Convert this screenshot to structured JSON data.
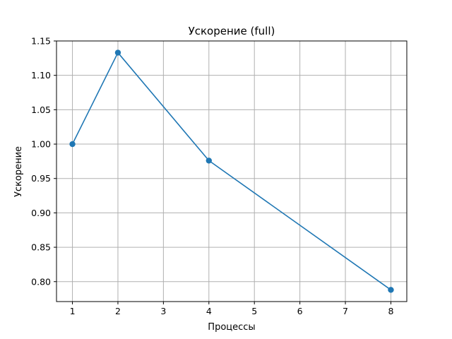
{
  "chart_data": {
    "type": "line",
    "title": "Ускорение (full)",
    "xlabel": "Процессы",
    "ylabel": "Ускорение",
    "x_ticks": [
      "1",
      "2",
      "3",
      "4",
      "5",
      "6",
      "7",
      "8"
    ],
    "y_ticks": [
      "0.80",
      "0.85",
      "0.90",
      "0.95",
      "1.00",
      "1.05",
      "1.10",
      "1.15"
    ],
    "xlim": [
      0.65,
      8.35
    ],
    "ylim": [
      0.771,
      1.15
    ],
    "grid": true,
    "series": [
      {
        "x": [
          1,
          2,
          4,
          8
        ],
        "y": [
          1.0,
          1.133,
          0.976,
          0.788
        ],
        "color": "#1f77b4",
        "marker": "circle"
      }
    ]
  }
}
